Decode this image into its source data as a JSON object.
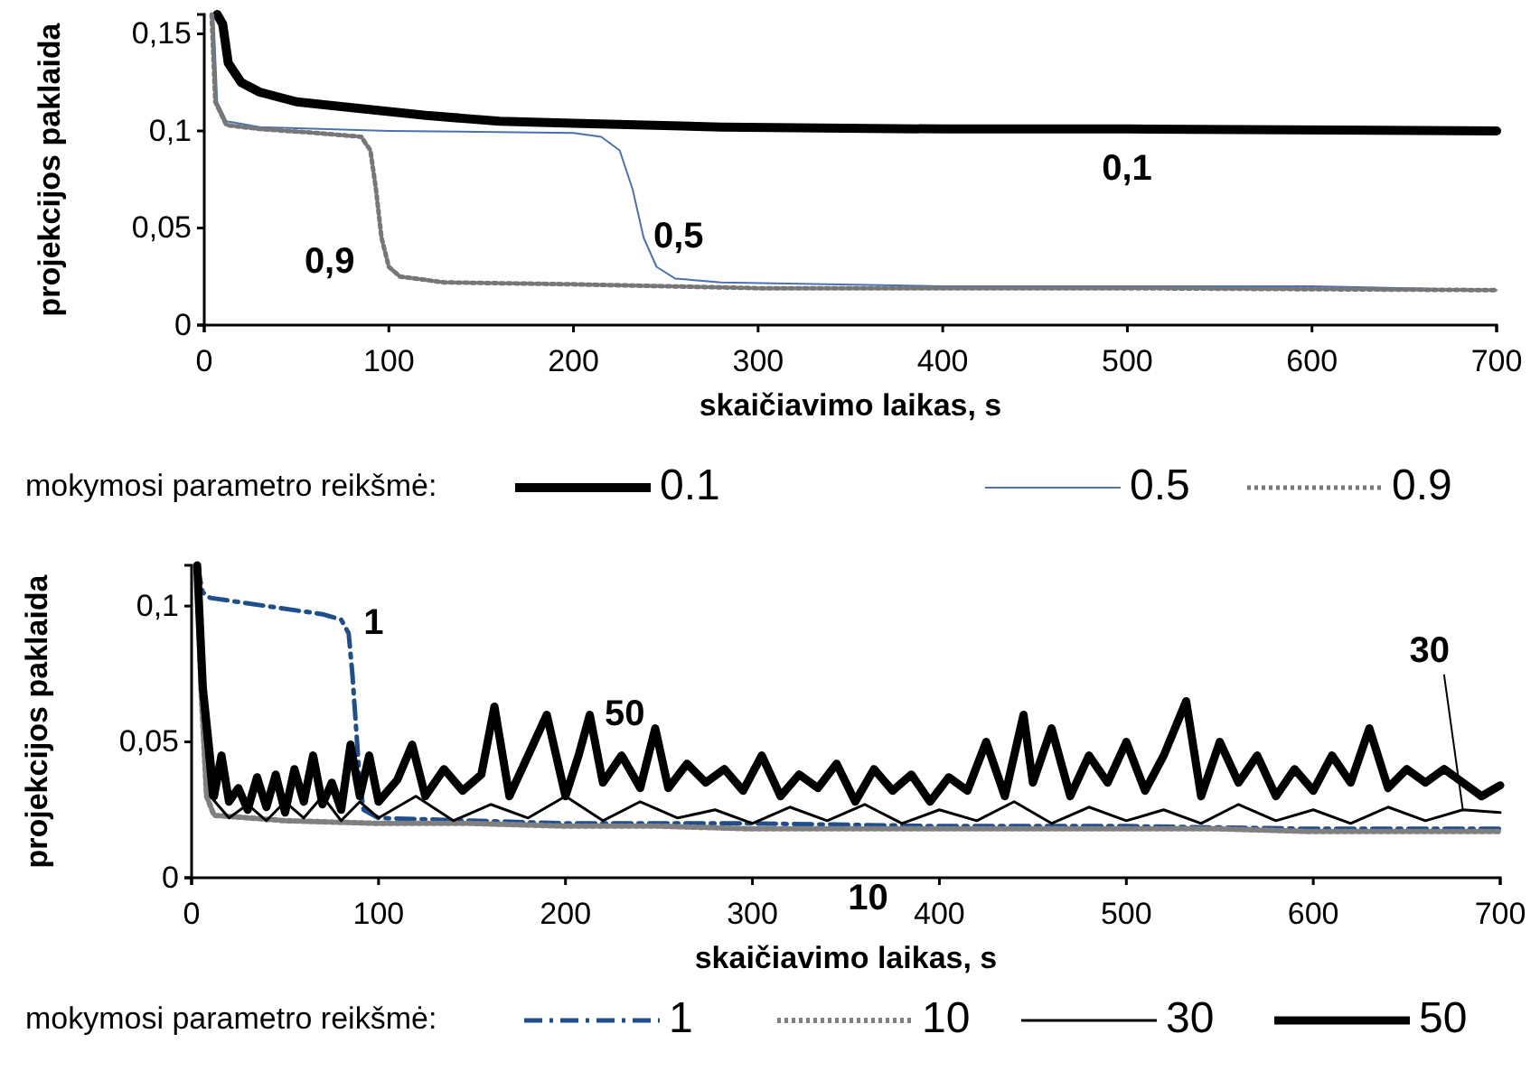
{
  "chart_data": [
    {
      "type": "line",
      "xlabel": "skaičiavimo laikas, s",
      "ylabel": "projekcijos paklaida",
      "legend_title": "mokymosi parametro reikšmė:",
      "legend": "bottom",
      "grid": false,
      "xlim": [
        0,
        700
      ],
      "xticks": [
        0,
        100,
        200,
        300,
        400,
        500,
        600,
        700
      ],
      "ylim": [
        0,
        0.16
      ],
      "yticks": [
        {
          "value": 0,
          "label": "0"
        },
        {
          "value": 0.05,
          "label": "0,05"
        },
        {
          "value": 0.1,
          "label": "0,1"
        },
        {
          "value": 0.15,
          "label": "0,15"
        }
      ],
      "series": [
        {
          "name": "0.1",
          "color": "#000000",
          "line_style": "solid",
          "x": [
            7,
            10,
            13,
            20,
            30,
            50,
            80,
            120,
            160,
            200,
            280,
            400,
            500,
            700
          ],
          "values": [
            0.16,
            0.155,
            0.135,
            0.125,
            0.12,
            0.115,
            0.112,
            0.108,
            0.105,
            0.104,
            0.102,
            0.101,
            0.101,
            0.1
          ]
        },
        {
          "name": "0.5",
          "color": "#4a72b0",
          "line_style": "solid",
          "x": [
            5,
            7,
            12,
            30,
            100,
            200,
            215,
            225,
            232,
            238,
            245,
            255,
            280,
            400,
            600,
            700
          ],
          "values": [
            0.16,
            0.115,
            0.105,
            0.102,
            0.1,
            0.099,
            0.097,
            0.09,
            0.07,
            0.045,
            0.03,
            0.024,
            0.022,
            0.02,
            0.02,
            0.018
          ]
        },
        {
          "name": "0.9",
          "color": "#777777",
          "line_style": "dotted",
          "x": [
            4,
            6,
            12,
            30,
            60,
            85,
            90,
            93,
            96,
            100,
            106,
            130,
            200,
            300,
            500,
            700
          ],
          "values": [
            0.16,
            0.115,
            0.103,
            0.101,
            0.099,
            0.097,
            0.09,
            0.07,
            0.045,
            0.03,
            0.025,
            0.022,
            0.021,
            0.019,
            0.019,
            0.018
          ]
        }
      ],
      "annotations": [
        "0,1",
        "0,5",
        "0,9"
      ]
    },
    {
      "type": "line",
      "xlabel": "skaičiavimo laikas, s",
      "ylabel": "projekcijos paklaida",
      "legend_title": "mokymosi parametro reikšmė:",
      "legend": "bottom",
      "grid": false,
      "xlim": [
        0,
        700
      ],
      "xticks": [
        0,
        100,
        200,
        300,
        400,
        500,
        600,
        700
      ],
      "ylim": [
        0,
        0.115
      ],
      "yticks": [
        {
          "value": 0,
          "label": "0"
        },
        {
          "value": 0.05,
          "label": "0,05"
        },
        {
          "value": 0.1,
          "label": "0,1"
        }
      ],
      "series": [
        {
          "name": "1",
          "color": "#1f4e8c",
          "line_style": "dashed",
          "x": [
            3,
            6,
            10,
            40,
            70,
            80,
            84,
            86,
            88,
            90,
            92,
            100,
            200,
            300,
            400,
            500,
            600,
            700
          ],
          "values": [
            0.115,
            0.105,
            0.103,
            0.1,
            0.097,
            0.095,
            0.09,
            0.075,
            0.055,
            0.035,
            0.025,
            0.022,
            0.02,
            0.02,
            0.019,
            0.019,
            0.018,
            0.018
          ]
        },
        {
          "name": "10",
          "color": "#808080",
          "line_style": "dotted",
          "x": [
            3,
            5,
            8,
            12,
            50,
            100,
            150,
            200,
            250,
            300,
            350,
            400,
            450,
            500,
            550,
            600,
            650,
            700
          ],
          "values": [
            0.115,
            0.07,
            0.03,
            0.023,
            0.021,
            0.02,
            0.02,
            0.019,
            0.019,
            0.018,
            0.018,
            0.018,
            0.018,
            0.018,
            0.018,
            0.017,
            0.017,
            0.017
          ]
        },
        {
          "name": "30",
          "color": "#000000",
          "line_style": "solid",
          "x": [
            3,
            6,
            10,
            20,
            30,
            40,
            50,
            60,
            70,
            80,
            90,
            100,
            120,
            140,
            160,
            180,
            200,
            220,
            240,
            260,
            280,
            300,
            320,
            340,
            360,
            380,
            400,
            420,
            440,
            460,
            480,
            500,
            520,
            540,
            560,
            580,
            600,
            620,
            640,
            660,
            680,
            700
          ],
          "values": [
            0.115,
            0.06,
            0.03,
            0.022,
            0.027,
            0.021,
            0.028,
            0.022,
            0.03,
            0.021,
            0.028,
            0.022,
            0.03,
            0.021,
            0.027,
            0.022,
            0.03,
            0.021,
            0.028,
            0.022,
            0.025,
            0.02,
            0.026,
            0.021,
            0.027,
            0.02,
            0.025,
            0.021,
            0.028,
            0.02,
            0.026,
            0.021,
            0.025,
            0.02,
            0.027,
            0.021,
            0.025,
            0.02,
            0.026,
            0.021,
            0.025,
            0.024
          ]
        },
        {
          "name": "50",
          "color": "#000000",
          "line_style": "solid",
          "x": [
            3,
            6,
            9,
            12,
            16,
            20,
            25,
            30,
            35,
            40,
            45,
            50,
            55,
            60,
            65,
            70,
            75,
            80,
            85,
            90,
            95,
            100,
            110,
            118,
            125,
            135,
            145,
            155,
            162,
            170,
            180,
            190,
            200,
            207,
            213,
            220,
            230,
            240,
            248,
            255,
            265,
            275,
            285,
            295,
            305,
            315,
            325,
            335,
            345,
            355,
            365,
            375,
            385,
            395,
            405,
            415,
            425,
            435,
            445,
            450,
            460,
            470,
            480,
            490,
            500,
            510,
            520,
            532,
            540,
            550,
            560,
            570,
            580,
            590,
            600,
            610,
            620,
            630,
            640,
            650,
            660,
            670,
            680,
            690,
            700
          ],
          "values": [
            0.115,
            0.07,
            0.05,
            0.03,
            0.045,
            0.028,
            0.033,
            0.025,
            0.037,
            0.026,
            0.038,
            0.024,
            0.04,
            0.028,
            0.045,
            0.027,
            0.035,
            0.025,
            0.049,
            0.03,
            0.045,
            0.028,
            0.036,
            0.049,
            0.03,
            0.04,
            0.032,
            0.038,
            0.063,
            0.03,
            0.045,
            0.06,
            0.03,
            0.045,
            0.06,
            0.035,
            0.045,
            0.033,
            0.055,
            0.033,
            0.042,
            0.035,
            0.04,
            0.032,
            0.045,
            0.03,
            0.038,
            0.033,
            0.042,
            0.028,
            0.04,
            0.032,
            0.038,
            0.028,
            0.037,
            0.032,
            0.05,
            0.03,
            0.06,
            0.035,
            0.055,
            0.03,
            0.045,
            0.035,
            0.05,
            0.032,
            0.045,
            0.065,
            0.03,
            0.05,
            0.035,
            0.045,
            0.03,
            0.04,
            0.032,
            0.045,
            0.035,
            0.055,
            0.033,
            0.04,
            0.035,
            0.04,
            0.035,
            0.03,
            0.034
          ]
        }
      ],
      "annotations": [
        "1",
        "50",
        {
          "text": "30",
          "x": 680,
          "y": 0.025
        },
        "10"
      ]
    }
  ]
}
